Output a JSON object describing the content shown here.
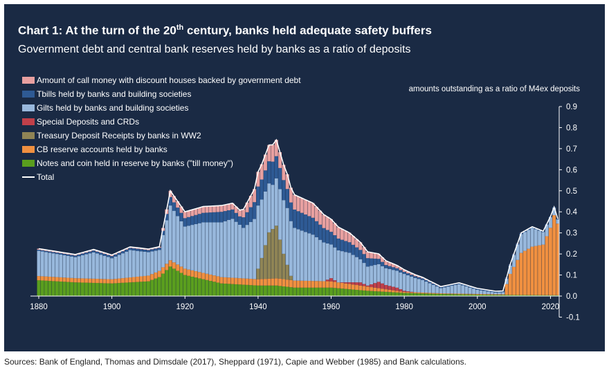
{
  "title_pre": "Chart 1: At the turn of the 20",
  "title_sup": "th",
  "title_post": " century, banks held adequate safety buffers",
  "subtitle": "Government debt and central bank reserves held by banks as a ratio of deposits",
  "source": "Sources: Bank of England, Thomas and Dimsdale (2017), Sheppard (1971), Capie and Webber (1985) and Bank calculations.",
  "chart_data": {
    "type": "area",
    "stacked": true,
    "x_start": 1880,
    "x_end": 2022,
    "y_axis_title": "amounts outstanding as a ratio of M4ex deposits",
    "ylim": [
      -0.1,
      0.9
    ],
    "y_ticks": [
      "0.9",
      "0.8",
      "0.7",
      "0.6",
      "0.5",
      "0.4",
      "0.3",
      "0.2",
      "0.1",
      "0.0",
      "-0.1"
    ],
    "x_ticks": [
      "1880",
      "1900",
      "1920",
      "1940",
      "1960",
      "1980",
      "2000",
      "2020"
    ],
    "grid": false,
    "legend_position": "top-left",
    "series": [
      {
        "name": "Notes and coin held in reserve by banks (\"till money\")",
        "color": "#5a9e1e",
        "knots": [
          [
            1880,
            0.075
          ],
          [
            1890,
            0.065
          ],
          [
            1900,
            0.06
          ],
          [
            1910,
            0.07
          ],
          [
            1913,
            0.09
          ],
          [
            1916,
            0.14
          ],
          [
            1920,
            0.1
          ],
          [
            1925,
            0.08
          ],
          [
            1930,
            0.06
          ],
          [
            1940,
            0.05
          ],
          [
            1945,
            0.05
          ],
          [
            1950,
            0.04
          ],
          [
            1960,
            0.04
          ],
          [
            1970,
            0.025
          ],
          [
            1980,
            0.015
          ],
          [
            1990,
            0.01
          ],
          [
            2000,
            0.007
          ],
          [
            2010,
            0.005
          ],
          [
            2022,
            0.004
          ]
        ]
      },
      {
        "name": "CB reserve accounts held by banks",
        "color": "#f09040",
        "knots": [
          [
            1880,
            0.02
          ],
          [
            1900,
            0.02
          ],
          [
            1914,
            0.03
          ],
          [
            1920,
            0.03
          ],
          [
            1940,
            0.03
          ],
          [
            1946,
            0.035
          ],
          [
            1960,
            0.03
          ],
          [
            1970,
            0.02
          ],
          [
            1980,
            0.005
          ],
          [
            1990,
            0.003
          ],
          [
            2000,
            0.003
          ],
          [
            2007,
            0.003
          ],
          [
            2009,
            0.1
          ],
          [
            2012,
            0.2
          ],
          [
            2015,
            0.23
          ],
          [
            2018,
            0.24
          ],
          [
            2020,
            0.32
          ],
          [
            2021,
            0.38
          ],
          [
            2022,
            0.34
          ]
        ]
      },
      {
        "name": "Treasury Deposit Receipts by banks in WW2",
        "color": "#8f8455",
        "knots": [
          [
            1880,
            0
          ],
          [
            1939,
            0
          ],
          [
            1941,
            0.1
          ],
          [
            1943,
            0.22
          ],
          [
            1945,
            0.25
          ],
          [
            1947,
            0.12
          ],
          [
            1949,
            0.02
          ],
          [
            1950,
            0
          ],
          [
            2022,
            0
          ]
        ]
      },
      {
        "name": "Special Deposits and CRDs",
        "color": "#c0404a",
        "knots": [
          [
            1880,
            0
          ],
          [
            1958,
            0
          ],
          [
            1960,
            0.015
          ],
          [
            1962,
            0
          ],
          [
            1965,
            0.008
          ],
          [
            1968,
            0.015
          ],
          [
            1970,
            0.005
          ],
          [
            1973,
            0.03
          ],
          [
            1975,
            0.02
          ],
          [
            1978,
            0.015
          ],
          [
            1980,
            0.005
          ],
          [
            1983,
            0
          ],
          [
            2022,
            0
          ]
        ]
      },
      {
        "name": "Gilts held by banks and building societies",
        "color": "#98b8dc",
        "knots": [
          [
            1880,
            0.12
          ],
          [
            1890,
            0.1
          ],
          [
            1895,
            0.125
          ],
          [
            1900,
            0.1
          ],
          [
            1905,
            0.13
          ],
          [
            1913,
            0.1
          ],
          [
            1916,
            0.26
          ],
          [
            1920,
            0.2
          ],
          [
            1925,
            0.24
          ],
          [
            1930,
            0.26
          ],
          [
            1933,
            0.28
          ],
          [
            1936,
            0.24
          ],
          [
            1940,
            0.3
          ],
          [
            1944,
            0.21
          ],
          [
            1948,
            0.27
          ],
          [
            1950,
            0.25
          ],
          [
            1955,
            0.22
          ],
          [
            1960,
            0.16
          ],
          [
            1965,
            0.14
          ],
          [
            1970,
            0.09
          ],
          [
            1975,
            0.08
          ],
          [
            1980,
            0.08
          ],
          [
            1985,
            0.06
          ],
          [
            1990,
            0.025
          ],
          [
            1995,
            0.045
          ],
          [
            2000,
            0.02
          ],
          [
            2005,
            0.008
          ],
          [
            2007,
            0.01
          ],
          [
            2009,
            0.04
          ],
          [
            2012,
            0.09
          ],
          [
            2015,
            0.09
          ],
          [
            2018,
            0.06
          ],
          [
            2020,
            0.05
          ],
          [
            2022,
            0.02
          ]
        ]
      },
      {
        "name": "Tbills held by banks and building societies",
        "color": "#2e5a94",
        "knots": [
          [
            1880,
            0.005
          ],
          [
            1900,
            0.01
          ],
          [
            1913,
            0.01
          ],
          [
            1916,
            0.04
          ],
          [
            1920,
            0.04
          ],
          [
            1930,
            0.05
          ],
          [
            1935,
            0.04
          ],
          [
            1940,
            0.09
          ],
          [
            1944,
            0.11
          ],
          [
            1948,
            0.09
          ],
          [
            1955,
            0.08
          ],
          [
            1960,
            0.06
          ],
          [
            1965,
            0.05
          ],
          [
            1970,
            0.04
          ],
          [
            1975,
            0.015
          ],
          [
            1980,
            0.01
          ],
          [
            1990,
            0.005
          ],
          [
            2000,
            0.005
          ],
          [
            2010,
            0.005
          ],
          [
            2022,
            0.003
          ]
        ]
      },
      {
        "name": "Amount of call money with discount houses backed by government debt",
        "color": "#e8a0a0",
        "knots": [
          [
            1880,
            0.005
          ],
          [
            1900,
            0.005
          ],
          [
            1913,
            0.005
          ],
          [
            1916,
            0.03
          ],
          [
            1920,
            0.03
          ],
          [
            1930,
            0.03
          ],
          [
            1935,
            0.03
          ],
          [
            1940,
            0.07
          ],
          [
            1944,
            0.08
          ],
          [
            1948,
            0.07
          ],
          [
            1955,
            0.07
          ],
          [
            1960,
            0.06
          ],
          [
            1965,
            0.045
          ],
          [
            1970,
            0.03
          ],
          [
            1975,
            0.02
          ],
          [
            1980,
            0.01
          ],
          [
            1985,
            0.005
          ],
          [
            1990,
            0.002
          ],
          [
            2022,
            0
          ]
        ]
      },
      {
        "name": "Total",
        "color": "#ffffff",
        "line": true
      }
    ]
  }
}
